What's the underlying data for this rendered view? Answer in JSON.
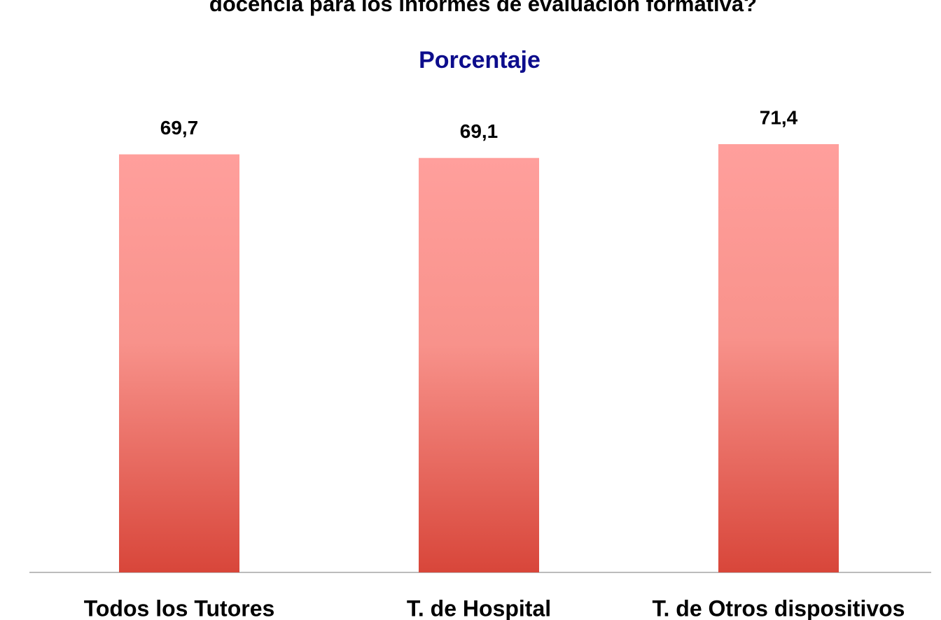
{
  "chart_data": {
    "type": "bar",
    "title": "docencia para los informes de evaluación formativa?",
    "subtitle": "Porcentaje",
    "categories": [
      "Todos los Tutores",
      "T. de Hospital",
      "T. de Otros dispositivos"
    ],
    "values": [
      69.7,
      69.1,
      71.4
    ],
    "value_labels": [
      "69,7",
      "69,1",
      "71,4"
    ],
    "grid": false
  }
}
